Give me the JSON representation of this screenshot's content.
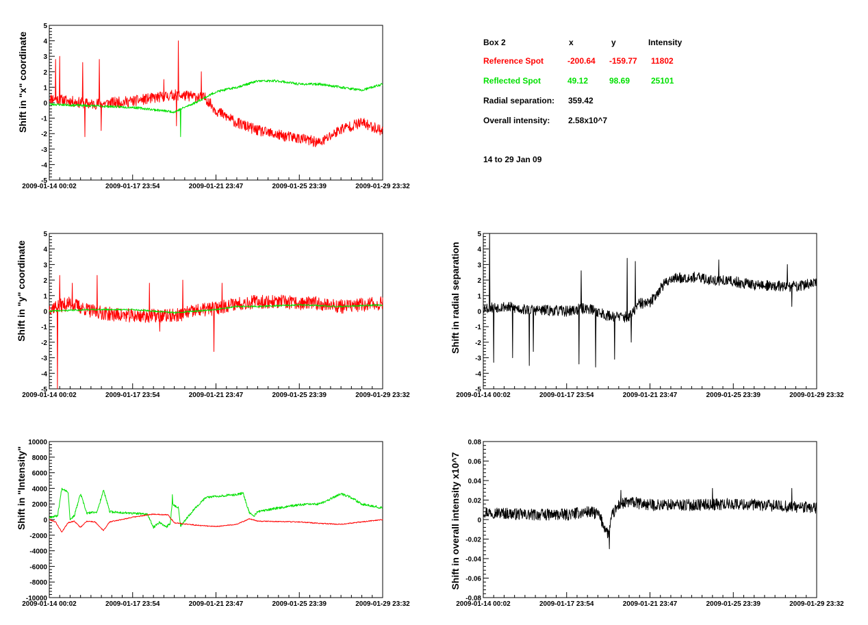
{
  "colors": {
    "reference": "#ff0000",
    "reflected": "#00e000",
    "radial": "#000000",
    "frame": "#000000"
  },
  "info": {
    "header": {
      "box": "Box 2",
      "x": "x",
      "y": "y",
      "intensity": "Intensity"
    },
    "reference": {
      "label": "Reference Spot",
      "x": "-200.64",
      "y": "-159.77",
      "intensity": "11802"
    },
    "reflected": {
      "label": "Reflected Spot",
      "x": "49.12",
      "y": "98.69",
      "intensity": "25101"
    },
    "radial": {
      "label": "Radial separation:",
      "value": "359.42"
    },
    "overall": {
      "label": "Overall intensity:",
      "value": "2.58x10^7"
    },
    "period": "14 to 29 Jan 09"
  },
  "chart_data": [
    {
      "id": "x-shift",
      "type": "line",
      "ylabel": "Shift in \"x\" coordinate",
      "xlabel": "",
      "ylim": [
        -5,
        5
      ],
      "yticks": [
        "-5",
        "-4",
        "-3",
        "-2",
        "-1",
        "0",
        "1",
        "2",
        "3",
        "4",
        "5"
      ],
      "xlim": [
        0,
        16
      ],
      "xticks": [
        {
          "value": 0,
          "label": "2009-01-14 00:02"
        },
        {
          "value": 4,
          "label": "2009-01-17 23:54"
        },
        {
          "value": 8,
          "label": "2009-01-21 23:47"
        },
        {
          "value": 12,
          "label": "2009-01-25 23:39"
        },
        {
          "value": 16,
          "label": "2009-01-29 23:32"
        }
      ],
      "series": [
        {
          "color": "#ff0000",
          "noise": 0.35,
          "seed": 11,
          "points": [
            [
              0,
              0.3
            ],
            [
              1,
              0.1
            ],
            [
              2,
              -0.1
            ],
            [
              3,
              0.0
            ],
            [
              4,
              0.1
            ],
            [
              5,
              0.3
            ],
            [
              6,
              0.5
            ],
            [
              7,
              0.4
            ],
            [
              7.5,
              0.3
            ],
            [
              8,
              -0.5
            ],
            [
              9,
              -1.3
            ],
            [
              10,
              -1.8
            ],
            [
              11,
              -2.1
            ],
            [
              12,
              -2.3
            ],
            [
              13,
              -2.6
            ],
            [
              14,
              -1.7
            ],
            [
              15,
              -1.3
            ],
            [
              16,
              -1.8
            ]
          ],
          "spikes": [
            [
              0.3,
              2.8
            ],
            [
              0.5,
              3.0
            ],
            [
              1.6,
              2.6
            ],
            [
              1.7,
              -2.2
            ],
            [
              2.4,
              2.8
            ],
            [
              2.5,
              -1.8
            ],
            [
              5.5,
              1.5
            ],
            [
              6.2,
              4.0
            ],
            [
              6.1,
              -1.5
            ],
            [
              7.3,
              2.0
            ]
          ]
        },
        {
          "color": "#00e000",
          "noise": 0.08,
          "seed": 23,
          "points": [
            [
              0,
              -0.1
            ],
            [
              2,
              -0.2
            ],
            [
              4,
              -0.3
            ],
            [
              6,
              -0.6
            ],
            [
              7,
              0.0
            ],
            [
              8,
              0.7
            ],
            [
              9,
              1.0
            ],
            [
              10,
              1.4
            ],
            [
              11,
              1.4
            ],
            [
              12,
              1.2
            ],
            [
              13,
              1.2
            ],
            [
              14,
              1.0
            ],
            [
              15,
              0.8
            ],
            [
              16,
              1.2
            ]
          ],
          "spikes": [
            [
              6.3,
              -2.2
            ]
          ]
        }
      ]
    },
    {
      "id": "y-shift",
      "type": "line",
      "ylabel": "Shift in \"y\" coordinate",
      "xlabel": "",
      "ylim": [
        -5,
        5
      ],
      "yticks": [
        "-5",
        "-4",
        "-3",
        "-2",
        "-1",
        "0",
        "1",
        "2",
        "3",
        "4",
        "5"
      ],
      "xlim": [
        0,
        16
      ],
      "xticks": [
        {
          "value": 0,
          "label": "2009-01-14 00:02"
        },
        {
          "value": 4,
          "label": "2009-01-17 23:54"
        },
        {
          "value": 8,
          "label": "2009-01-21 23:47"
        },
        {
          "value": 12,
          "label": "2009-01-25 23:39"
        },
        {
          "value": 16,
          "label": "2009-01-29 23:32"
        }
      ],
      "series": [
        {
          "color": "#ff0000",
          "noise": 0.45,
          "seed": 37,
          "points": [
            [
              0,
              0.2
            ],
            [
              1,
              0.5
            ],
            [
              2,
              0.0
            ],
            [
              3,
              -0.2
            ],
            [
              4,
              -0.3
            ],
            [
              5,
              -0.3
            ],
            [
              6,
              -0.3
            ],
            [
              7,
              0.0
            ],
            [
              8,
              0.2
            ],
            [
              9,
              0.5
            ],
            [
              10,
              0.6
            ],
            [
              11,
              0.6
            ],
            [
              12,
              0.5
            ],
            [
              13,
              0.5
            ],
            [
              14,
              0.3
            ],
            [
              15,
              0.4
            ],
            [
              16,
              0.5
            ]
          ],
          "spikes": [
            [
              0.4,
              -5.0
            ],
            [
              0.5,
              2.3
            ],
            [
              1.1,
              1.8
            ],
            [
              2.3,
              2.3
            ],
            [
              4.8,
              1.8
            ],
            [
              5.3,
              -1.3
            ],
            [
              6.4,
              2.0
            ],
            [
              7.9,
              -2.6
            ],
            [
              8.3,
              1.8
            ]
          ]
        },
        {
          "color": "#00e000",
          "noise": 0.05,
          "seed": 41,
          "points": [
            [
              0,
              0.0
            ],
            [
              2,
              0.1
            ],
            [
              4,
              0.1
            ],
            [
              6,
              -0.1
            ],
            [
              8,
              0.1
            ],
            [
              9,
              0.3
            ],
            [
              10,
              0.3
            ],
            [
              12,
              0.4
            ],
            [
              14,
              0.3
            ],
            [
              16,
              0.4
            ]
          ],
          "spikes": []
        }
      ]
    },
    {
      "id": "radial-shift",
      "type": "line",
      "ylabel": "Shift in radial separation",
      "xlabel": "",
      "ylim": [
        -5,
        5
      ],
      "yticks": [
        "-5",
        "-4",
        "-3",
        "-2",
        "-1",
        "0",
        "1",
        "2",
        "3",
        "4",
        "5"
      ],
      "xlim": [
        0,
        16
      ],
      "xticks": [
        {
          "value": 0,
          "label": "2009-01-14 00:02"
        },
        {
          "value": 4,
          "label": "2009-01-17 23:54"
        },
        {
          "value": 8,
          "label": "2009-01-21 23:47"
        },
        {
          "value": 12,
          "label": "2009-01-25 23:39"
        },
        {
          "value": 16,
          "label": "2009-01-29 23:32"
        }
      ],
      "series": [
        {
          "color": "#000000",
          "noise": 0.35,
          "seed": 53,
          "points": [
            [
              0,
              0.2
            ],
            [
              1,
              0.3
            ],
            [
              2,
              0.1
            ],
            [
              4,
              0.0
            ],
            [
              5,
              0.2
            ],
            [
              6,
              -0.3
            ],
            [
              7,
              -0.4
            ],
            [
              7.5,
              0.5
            ],
            [
              8,
              0.5
            ],
            [
              8.5,
              1.5
            ],
            [
              9,
              2.1
            ],
            [
              10,
              2.2
            ],
            [
              11,
              2.0
            ],
            [
              12,
              1.9
            ],
            [
              13,
              1.7
            ],
            [
              14,
              1.6
            ],
            [
              15,
              1.6
            ],
            [
              16,
              1.8
            ]
          ],
          "spikes": [
            [
              0.3,
              5.0
            ],
            [
              0.5,
              -3.3
            ],
            [
              1.4,
              -3.0
            ],
            [
              2.2,
              -3.5
            ],
            [
              2.4,
              -2.6
            ],
            [
              4.6,
              -3.4
            ],
            [
              4.7,
              2.6
            ],
            [
              5.4,
              -3.6
            ],
            [
              6.3,
              -3.1
            ],
            [
              6.9,
              3.4
            ],
            [
              7.1,
              -2.0
            ],
            [
              7.3,
              3.2
            ],
            [
              11.3,
              3.3
            ],
            [
              14.6,
              3.0
            ],
            [
              14.8,
              0.3
            ]
          ]
        }
      ]
    },
    {
      "id": "intensity-shift",
      "type": "line",
      "ylabel": "Shift in \"Intensity\"",
      "xlabel": "",
      "ylim": [
        -10000,
        10000
      ],
      "yticks": [
        "-10000",
        "-8000",
        "-6000",
        "-4000",
        "-2000",
        "0",
        "2000",
        "4000",
        "6000",
        "8000",
        "10000"
      ],
      "xlim": [
        0,
        16
      ],
      "xticks": [
        {
          "value": 0,
          "label": "2009-01-14 00:02"
        },
        {
          "value": 4,
          "label": "2009-01-17 23:54"
        },
        {
          "value": 8,
          "label": "2009-01-21 23:47"
        },
        {
          "value": 12,
          "label": "2009-01-25 23:39"
        },
        {
          "value": 16,
          "label": "2009-01-29 23:32"
        }
      ],
      "series": [
        {
          "color": "#00e000",
          "noise": 150,
          "seed": 67,
          "points": [
            [
              0,
              300
            ],
            [
              0.4,
              500
            ],
            [
              0.6,
              4000
            ],
            [
              0.9,
              3600
            ],
            [
              1.0,
              0
            ],
            [
              1.2,
              500
            ],
            [
              1.5,
              3300
            ],
            [
              1.8,
              800
            ],
            [
              2.3,
              1000
            ],
            [
              2.6,
              3800
            ],
            [
              2.9,
              1000
            ],
            [
              4,
              800
            ],
            [
              4.7,
              700
            ],
            [
              5.0,
              -1000
            ],
            [
              5.3,
              -300
            ],
            [
              5.6,
              -1000
            ],
            [
              5.8,
              -500
            ],
            [
              5.9,
              2000
            ],
            [
              6.2,
              1500
            ],
            [
              6.3,
              -800
            ],
            [
              7,
              1500
            ],
            [
              7.5,
              2800
            ],
            [
              8,
              3000
            ],
            [
              9,
              3200
            ],
            [
              9.3,
              3400
            ],
            [
              9.6,
              900
            ],
            [
              9.8,
              400
            ],
            [
              10,
              1000
            ],
            [
              11,
              1500
            ],
            [
              12,
              1900
            ],
            [
              13,
              2000
            ],
            [
              14,
              3300
            ],
            [
              14.5,
              2800
            ],
            [
              15,
              2000
            ],
            [
              16,
              1500
            ]
          ],
          "spikes": [
            [
              5.9,
              3200
            ]
          ]
        },
        {
          "color": "#ff0000",
          "noise": 60,
          "seed": 79,
          "points": [
            [
              0,
              0
            ],
            [
              0.3,
              -300
            ],
            [
              0.6,
              -1600
            ],
            [
              0.9,
              -400
            ],
            [
              1.2,
              -200
            ],
            [
              1.5,
              -1000
            ],
            [
              1.8,
              -200
            ],
            [
              2.2,
              -300
            ],
            [
              2.6,
              -1400
            ],
            [
              2.9,
              -300
            ],
            [
              4,
              300
            ],
            [
              5,
              700
            ],
            [
              5.7,
              600
            ],
            [
              6.0,
              -400
            ],
            [
              6.3,
              -500
            ],
            [
              7,
              -700
            ],
            [
              8,
              -900
            ],
            [
              9,
              -600
            ],
            [
              9.6,
              100
            ],
            [
              10,
              -200
            ],
            [
              12,
              -300
            ],
            [
              13,
              -500
            ],
            [
              14,
              -600
            ],
            [
              15,
              -300
            ],
            [
              16,
              0
            ]
          ],
          "spikes": []
        }
      ]
    },
    {
      "id": "overall-intensity-shift",
      "type": "line",
      "ylabel": "Shift in overall intensity x10^7",
      "xlabel": "",
      "ylim": [
        -0.08,
        0.08
      ],
      "yticks": [
        "-0.08",
        "-0.06",
        "-0.04",
        "-0.02",
        "0",
        "0.02",
        "0.04",
        "0.06",
        "0.08"
      ],
      "xlim": [
        0,
        16
      ],
      "xticks": [
        {
          "value": 0,
          "label": "2009-01-14 00:02"
        },
        {
          "value": 4,
          "label": "2009-01-17 23:54"
        },
        {
          "value": 8,
          "label": "2009-01-21 23:47"
        },
        {
          "value": 12,
          "label": "2009-01-25 23:39"
        },
        {
          "value": 16,
          "label": "2009-01-29 23:32"
        }
      ],
      "series": [
        {
          "color": "#000000",
          "noise": 0.006,
          "seed": 97,
          "points": [
            [
              0,
              0.008
            ],
            [
              2,
              0.005
            ],
            [
              4,
              0.005
            ],
            [
              5,
              0.008
            ],
            [
              5.5,
              0.006
            ],
            [
              6.0,
              -0.015
            ],
            [
              6.2,
              0.005
            ],
            [
              6.5,
              0.015
            ],
            [
              7,
              0.018
            ],
            [
              8,
              0.015
            ],
            [
              10,
              0.015
            ],
            [
              12,
              0.016
            ],
            [
              14,
              0.014
            ],
            [
              16,
              0.012
            ]
          ],
          "spikes": [
            [
              6.05,
              -0.03
            ],
            [
              6.6,
              0.03
            ],
            [
              11.0,
              0.032
            ],
            [
              14.8,
              0.032
            ]
          ]
        }
      ]
    }
  ]
}
